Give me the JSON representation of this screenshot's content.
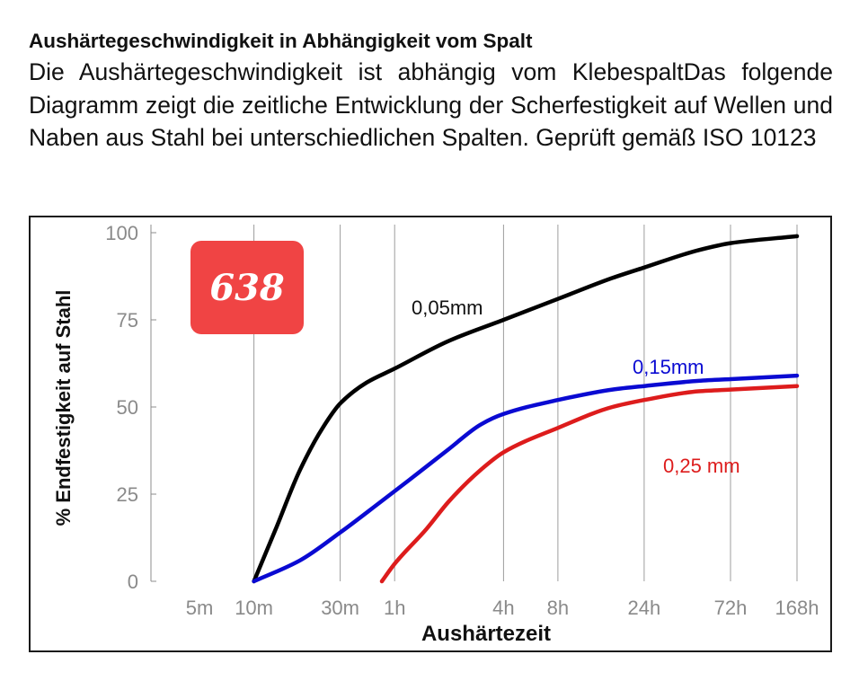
{
  "heading": "Aushärtegeschwindigkeit in Abhängigkeit vom Spalt",
  "description": "Die Aushärtegeschwindigkeit ist abhängig vom KlebespaltDas folgende Diagramm zeigt die zeitliche Entwicklung der Scherfestigkeit auf Wellen und Naben aus Stahl bei unterschiedlichen Spalten. Geprüft gemäß ISO 10123",
  "badge": {
    "text": "638",
    "color": "#f04444"
  },
  "chart_data": {
    "type": "line",
    "xlabel": "Aushärtezeit",
    "ylabel": "% Endfestigkeit auf Stahl",
    "x_scale": "log",
    "x_unit": "hours",
    "xlim": [
      0.0833,
      168
    ],
    "ylim": [
      0,
      100
    ],
    "grid": "vertical",
    "x_ticks": [
      {
        "value": 0.0833,
        "label": "5m",
        "gridline": false
      },
      {
        "value": 0.1667,
        "label": "10m",
        "gridline": true
      },
      {
        "value": 0.5,
        "label": "30m",
        "gridline": true
      },
      {
        "value": 1,
        "label": "1h",
        "gridline": true
      },
      {
        "value": 4,
        "label": "4h",
        "gridline": true
      },
      {
        "value": 8,
        "label": "8h",
        "gridline": true
      },
      {
        "value": 24,
        "label": "24h",
        "gridline": true
      },
      {
        "value": 72,
        "label": "72h",
        "gridline": true
      },
      {
        "value": 168,
        "label": "168h",
        "gridline": true
      }
    ],
    "y_ticks": [
      {
        "value": 0,
        "label": "0"
      },
      {
        "value": 25,
        "label": "25"
      },
      {
        "value": 50,
        "label": "50"
      },
      {
        "value": 75,
        "label": "75"
      },
      {
        "value": 100,
        "label": "100"
      }
    ],
    "series": [
      {
        "name": "0,05mm",
        "color": "#000000",
        "points": [
          [
            0.1667,
            0
          ],
          [
            0.22,
            15
          ],
          [
            0.3,
            32
          ],
          [
            0.4,
            44
          ],
          [
            0.5,
            51
          ],
          [
            0.7,
            57
          ],
          [
            1,
            61
          ],
          [
            2,
            69
          ],
          [
            4,
            75
          ],
          [
            8,
            81
          ],
          [
            16,
            87
          ],
          [
            24,
            90
          ],
          [
            48,
            95
          ],
          [
            72,
            97
          ],
          [
            168,
            99
          ]
        ]
      },
      {
        "name": "0,15mm",
        "color": "#0a0ad2",
        "points": [
          [
            0.1667,
            0
          ],
          [
            0.3,
            6
          ],
          [
            0.5,
            14
          ],
          [
            0.8,
            22
          ],
          [
            1.2,
            29
          ],
          [
            2,
            38
          ],
          [
            3,
            45
          ],
          [
            4,
            48
          ],
          [
            8,
            52
          ],
          [
            16,
            55
          ],
          [
            24,
            56
          ],
          [
            48,
            57.5
          ],
          [
            72,
            58
          ],
          [
            168,
            59
          ]
        ]
      },
      {
        "name": "0,25 mm",
        "color": "#dd1c1c",
        "points": [
          [
            0.85,
            0
          ],
          [
            1,
            5
          ],
          [
            1.5,
            15
          ],
          [
            2,
            23
          ],
          [
            3,
            32
          ],
          [
            4,
            37
          ],
          [
            8,
            44
          ],
          [
            16,
            50
          ],
          [
            24,
            52
          ],
          [
            48,
            54.5
          ],
          [
            72,
            55
          ],
          [
            168,
            56
          ]
        ]
      }
    ]
  }
}
